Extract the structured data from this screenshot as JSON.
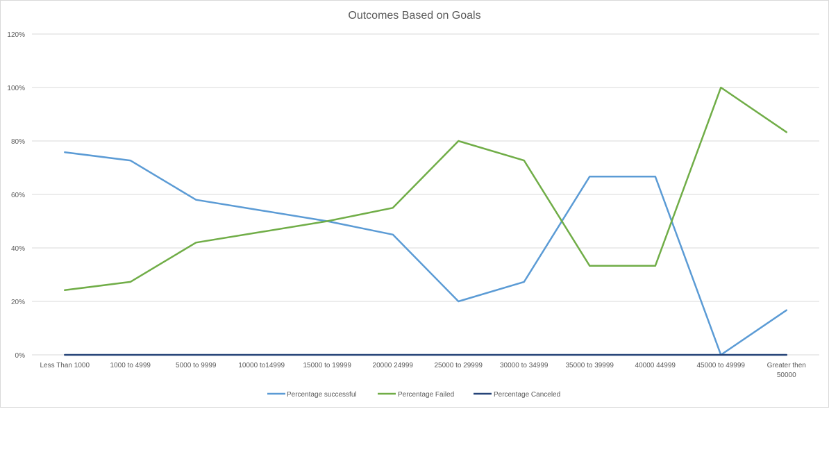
{
  "chart_data": {
    "type": "line",
    "title": "Outcomes Based on Goals",
    "xlabel": "",
    "ylabel": "",
    "ylim": [
      0,
      1.2
    ],
    "yticks": [
      {
        "value": 0,
        "label": "0%"
      },
      {
        "value": 0.2,
        "label": "20%"
      },
      {
        "value": 0.4,
        "label": "40%"
      },
      {
        "value": 0.6,
        "label": "60%"
      },
      {
        "value": 0.8,
        "label": "80%"
      },
      {
        "value": 1.0,
        "label": "100%"
      },
      {
        "value": 1.2,
        "label": "120%"
      }
    ],
    "grid": true,
    "legend_position": "bottom",
    "categories": [
      [
        "Less Than 1000"
      ],
      [
        "1000 to 4999"
      ],
      [
        "5000 to 9999"
      ],
      [
        "10000 to14999"
      ],
      [
        "15000 to 19999"
      ],
      [
        "20000 24999"
      ],
      [
        "25000 to 29999"
      ],
      [
        "30000 to 34999"
      ],
      [
        "35000 to 39999"
      ],
      [
        "40000 44999"
      ],
      [
        "45000 to 49999"
      ],
      [
        "Greater then",
        "50000"
      ]
    ],
    "series": [
      {
        "name": "Percentage successful",
        "color": "#5b9bd5",
        "values": [
          0.758,
          0.727,
          0.58,
          0.54,
          0.5,
          0.45,
          0.2,
          0.273,
          0.667,
          0.667,
          0.0,
          0.167
        ]
      },
      {
        "name": "Percentage Failed",
        "color": "#70ad47",
        "values": [
          0.242,
          0.273,
          0.42,
          0.46,
          0.5,
          0.55,
          0.8,
          0.727,
          0.333,
          0.333,
          1.0,
          0.833
        ]
      },
      {
        "name": "Percentage Canceled",
        "color": "#264478",
        "values": [
          0,
          0,
          0,
          0,
          0,
          0,
          0,
          0,
          0,
          0,
          0,
          0
        ]
      }
    ]
  }
}
